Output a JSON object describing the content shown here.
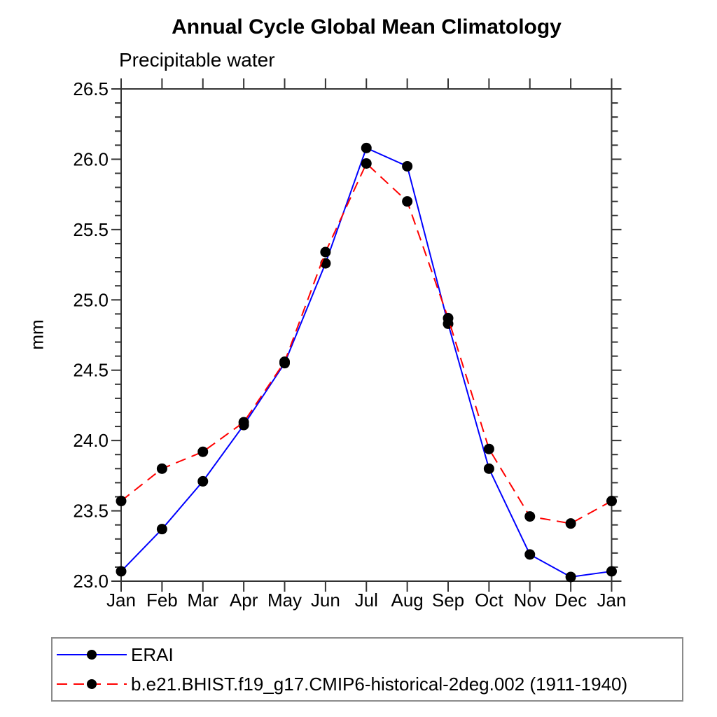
{
  "page": {
    "background": "#ffffff"
  },
  "chart": {
    "title": "Annual Cycle Global Mean Climatology",
    "subtitle": "Precipitable water",
    "ylabel": "mm"
  },
  "chart_data": {
    "type": "line",
    "title": "Annual Cycle Global Mean Climatology",
    "subtitle": "Precipitable water",
    "xlabel": "",
    "ylabel": "mm",
    "categories": [
      "Jan",
      "Feb",
      "Mar",
      "Apr",
      "May",
      "Jun",
      "Jul",
      "Aug",
      "Sep",
      "Oct",
      "Nov",
      "Dec",
      "Jan"
    ],
    "series": [
      {
        "name": "ERAI",
        "color": "#0000ff",
        "linestyle": "solid",
        "marker": "circle",
        "marker_color": "#000000",
        "values": [
          23.07,
          23.37,
          23.71,
          24.11,
          24.55,
          25.26,
          26.08,
          25.95,
          24.83,
          23.8,
          23.19,
          23.03,
          23.07
        ]
      },
      {
        "name": "b.e21.BHIST.f19_g17.CMIP6-historical-2deg.002 (1911-1940)",
        "color": "#ff0000",
        "linestyle": "dashed",
        "marker": "circle",
        "marker_color": "#000000",
        "values": [
          23.57,
          23.8,
          23.92,
          24.13,
          24.56,
          25.34,
          25.97,
          25.7,
          24.87,
          23.94,
          23.46,
          23.41,
          23.57
        ]
      }
    ],
    "ylim": [
      23.0,
      26.5
    ],
    "ytick_step": 0.5,
    "yminor_step": 0.1,
    "ytick_labels": [
      "23.0",
      "23.5",
      "24.0",
      "24.5",
      "25.0",
      "25.5",
      "26.0",
      "26.5"
    ],
    "grid": false,
    "legend_position": "bottom",
    "axis_color": "#333333",
    "tick_direction": "out"
  }
}
